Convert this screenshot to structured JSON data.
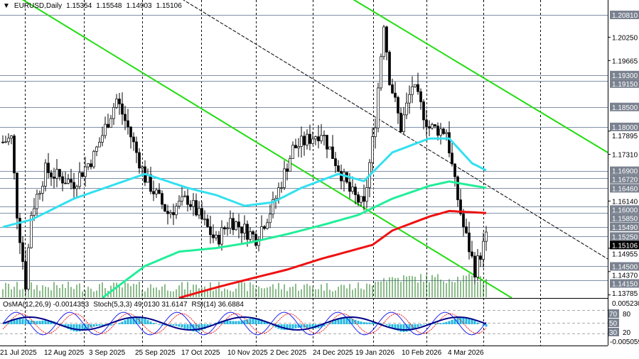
{
  "header": {
    "symbol": "EURUSD,Daily",
    "open": "1.15354",
    "high": "1.15548",
    "low": "1.14903",
    "close": "1.15106"
  },
  "indicators": {
    "osma": "OsMA(12,26,9) -0.0014353",
    "stoch": "Stoch(5,3,3) 49.0130 31.6147",
    "rsi": "RSI(14) 36.6884"
  },
  "colors": {
    "cyan_ma": "#33e0f0",
    "green_ma": "#22ee99",
    "red_ma": "#ee1111",
    "trend": "#22dd11",
    "level": "#8090a8",
    "label_bg": "#7a8290"
  },
  "price_axis": {
    "levels": [
      "1.20810",
      "1.19300",
      "1.19150",
      "1.18500",
      "1.18000",
      "1.16900",
      "1.16720",
      "1.16460",
      "1.16000",
      "1.15850",
      "1.15490",
      "1.15250",
      "1.14500",
      "1.14150"
    ],
    "ticks": [
      "1.20250",
      "1.19665",
      "1.17895",
      "1.17310",
      "1.16140",
      "1.14955",
      "1.14370",
      "1.13785"
    ],
    "current": "1.15106"
  },
  "indicator_axis": {
    "top": "0.005230",
    "bottom": "-0.005059",
    "levels": [
      "70",
      "50",
      "30"
    ],
    "ticks": [
      "80",
      "20"
    ]
  },
  "time_axis": [
    "21 Jul 2025",
    "12 Aug 2025",
    "3 Sep 2025",
    "25 Sep 2025",
    "17 Oct 2025",
    "10 Nov 2025",
    "2 Dec 2025",
    "24 Dec 2025",
    "19 Jan 2026",
    "10 Feb 2026",
    "4 Mar 2026"
  ],
  "chart_data": {
    "type": "candlestick",
    "title": "EURUSD,Daily",
    "ylim": [
      1.135,
      1.212
    ],
    "close_waypoints": [
      [
        0,
        1.1762
      ],
      [
        3,
        1.1771
      ],
      [
        5,
        1.1584
      ],
      [
        8,
        1.1406
      ],
      [
        10,
        1.1584
      ],
      [
        15,
        1.1691
      ],
      [
        20,
        1.1673
      ],
      [
        25,
        1.166
      ],
      [
        32,
        1.1727
      ],
      [
        40,
        1.1869
      ],
      [
        44,
        1.1798
      ],
      [
        50,
        1.1673
      ],
      [
        58,
        1.1584
      ],
      [
        65,
        1.162
      ],
      [
        75,
        1.1513
      ],
      [
        80,
        1.1567
      ],
      [
        89,
        1.1522
      ],
      [
        95,
        1.1602
      ],
      [
        102,
        1.1745
      ],
      [
        112,
        1.1789
      ],
      [
        122,
        1.1638
      ],
      [
        127,
        1.16
      ],
      [
        131,
        1.1816
      ],
      [
        134,
        1.2065
      ],
      [
        136,
        1.1923
      ],
      [
        140,
        1.1798
      ],
      [
        144,
        1.1905
      ],
      [
        150,
        1.1798
      ],
      [
        156,
        1.179
      ],
      [
        159,
        1.1656
      ],
      [
        162,
        1.1549
      ],
      [
        166,
        1.1442
      ],
      [
        170,
        1.1522
      ]
    ],
    "ma_fast": [
      [
        0,
        1.1549
      ],
      [
        10,
        1.1567
      ],
      [
        25,
        1.162
      ],
      [
        50,
        1.1682
      ],
      [
        65,
        1.1647
      ],
      [
        75,
        1.1629
      ],
      [
        85,
        1.1602
      ],
      [
        95,
        1.1611
      ],
      [
        105,
        1.1647
      ],
      [
        118,
        1.1682
      ],
      [
        127,
        1.1664
      ],
      [
        137,
        1.1736
      ],
      [
        150,
        1.1771
      ],
      [
        157,
        1.1771
      ],
      [
        165,
        1.1709
      ],
      [
        170,
        1.1691
      ]
    ],
    "ma_mid": [
      [
        35,
        1.1371
      ],
      [
        50,
        1.1451
      ],
      [
        62,
        1.1487
      ],
      [
        75,
        1.1496
      ],
      [
        87,
        1.151
      ],
      [
        100,
        1.1531
      ],
      [
        112,
        1.1553
      ],
      [
        125,
        1.1579
      ],
      [
        137,
        1.162
      ],
      [
        150,
        1.1652
      ],
      [
        157,
        1.1663
      ],
      [
        170,
        1.1647
      ]
    ],
    "ma_slow": [
      [
        62,
        1.1371
      ],
      [
        75,
        1.1397
      ],
      [
        87,
        1.1419
      ],
      [
        100,
        1.1442
      ],
      [
        112,
        1.1469
      ],
      [
        130,
        1.1504
      ],
      [
        137,
        1.154
      ],
      [
        150,
        1.1575
      ],
      [
        157,
        1.1589
      ],
      [
        170,
        1.1584
      ]
    ]
  }
}
